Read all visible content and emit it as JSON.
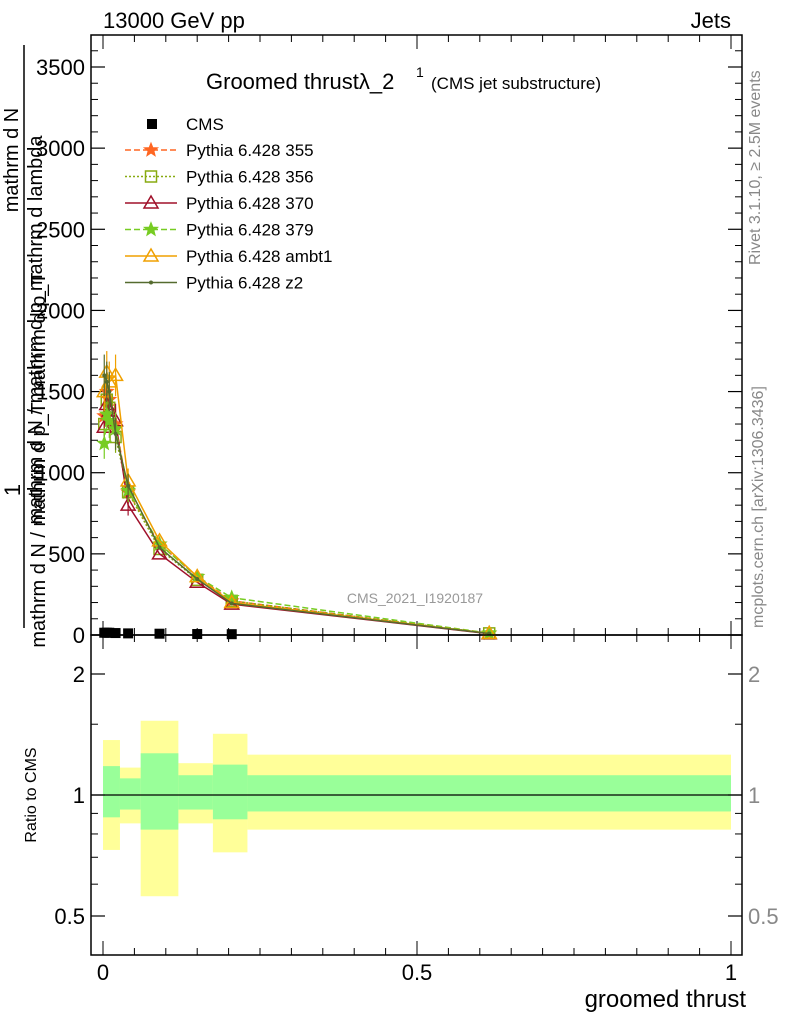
{
  "header": {
    "left": "13000 GeV pp",
    "right": "Jets"
  },
  "side": {
    "rivet": "Rivet 3.1.10, ≥ 2.5M events",
    "mcplots": "mcplots.cern.ch [arXiv:1306.3436]"
  },
  "title": {
    "main": "Groomed thrustλ_2",
    "sup": "1",
    "sub": "(CMS jet substructure)"
  },
  "watermark": "CMS_2021_I1920187",
  "ylabel_top": {
    "one": "1",
    "num": "mathrm d N / mathrm d p_mathrm d lambda",
    "den_a": "mathrm d N / mathrm d p_T mathrm d p_T",
    "den_b": "mathrm d N"
  },
  "ylabel_ratio": "Ratio to CMS",
  "xlabel": "groomed thrust",
  "colors": {
    "data": "#000000",
    "p355": "#ff6622",
    "p356": "#88aa11",
    "p370": "#a0102a",
    "p379": "#77cc22",
    "ambt1": "#f0a000",
    "z2": "#556b2f",
    "band_inner": "#99ff99",
    "band_outer": "#ffff99"
  },
  "chart_data": [
    {
      "type": "line",
      "xlim": [
        -0.02,
        1.02
      ],
      "ylim": [
        0,
        3700
      ],
      "xticks": [
        "0",
        "0.5",
        "1"
      ],
      "yticks": [
        "0",
        "500",
        "1000",
        "1500",
        "2000",
        "2500",
        "3000",
        "3500"
      ],
      "legend_position": "top-left",
      "data": {
        "name": "CMS",
        "x": [
          0.002,
          0.006,
          0.01,
          0.02,
          0.04,
          0.09,
          0.15,
          0.205
        ],
        "y": [
          14,
          14,
          14,
          12,
          10,
          8,
          6,
          5
        ]
      },
      "series": [
        {
          "name": "Pythia 6.428 355",
          "key": "p355",
          "marker": "star",
          "dash": "6,3",
          "x": [
            0.002,
            0.006,
            0.01,
            0.02,
            0.04,
            0.09,
            0.15,
            0.205,
            0.615
          ],
          "y": [
            1350,
            1500,
            1450,
            1300,
            880,
            560,
            360,
            210,
            10
          ]
        },
        {
          "name": "Pythia 6.428 356",
          "key": "p356",
          "marker": "square",
          "dash": "2,2",
          "x": [
            0.002,
            0.006,
            0.01,
            0.02,
            0.04,
            0.09,
            0.15,
            0.205,
            0.615
          ],
          "y": [
            1300,
            1450,
            1400,
            1220,
            880,
            530,
            340,
            210,
            10
          ]
        },
        {
          "name": "Pythia 6.428 370",
          "key": "p370",
          "marker": "triangle-open",
          "dash": "",
          "x": [
            0.002,
            0.006,
            0.01,
            0.02,
            0.04,
            0.09,
            0.15,
            0.205,
            0.615
          ],
          "y": [
            1280,
            1420,
            1380,
            1320,
            800,
            500,
            325,
            190,
            8
          ]
        },
        {
          "name": "Pythia 6.428 379",
          "key": "p379",
          "marker": "star",
          "dash": "6,3",
          "x": [
            0.002,
            0.006,
            0.01,
            0.02,
            0.04,
            0.09,
            0.15,
            0.205,
            0.615
          ],
          "y": [
            1180,
            1360,
            1320,
            1270,
            890,
            560,
            360,
            230,
            12
          ]
        },
        {
          "name": "Pythia 6.428 ambt1",
          "key": "ambt1",
          "marker": "triangle-open",
          "dash": "",
          "x": [
            0.002,
            0.006,
            0.01,
            0.02,
            0.04,
            0.09,
            0.15,
            0.205,
            0.615
          ],
          "y": [
            1500,
            1620,
            1560,
            1600,
            950,
            580,
            360,
            200,
            10
          ]
        },
        {
          "name": "Pythia 6.428 z2",
          "key": "z2",
          "marker": "dot",
          "dash": "",
          "x": [
            0.002,
            0.006,
            0.01,
            0.02,
            0.04,
            0.09,
            0.15,
            0.205,
            0.615
          ],
          "y": [
            1600,
            1560,
            1500,
            1240,
            920,
            540,
            345,
            195,
            9
          ]
        }
      ]
    },
    {
      "type": "area",
      "xlim": [
        -0.02,
        1.02
      ],
      "ylim": [
        0.35,
        2.3
      ],
      "xticks": [
        "0",
        "0.5",
        "1"
      ],
      "yticks": [
        "0.5",
        "1",
        "2"
      ],
      "reference_line": 1,
      "bands": [
        {
          "x0": 0.0,
          "x1": 0.027,
          "inner": [
            0.88,
            1.18
          ],
          "outer": [
            0.73,
            1.37
          ]
        },
        {
          "x0": 0.027,
          "x1": 0.06,
          "inner": [
            0.92,
            1.1
          ],
          "outer": [
            0.85,
            1.17
          ]
        },
        {
          "x0": 0.06,
          "x1": 0.12,
          "inner": [
            0.82,
            1.27
          ],
          "outer": [
            0.56,
            1.53
          ]
        },
        {
          "x0": 0.12,
          "x1": 0.175,
          "inner": [
            0.92,
            1.12
          ],
          "outer": [
            0.85,
            1.2
          ]
        },
        {
          "x0": 0.175,
          "x1": 0.23,
          "inner": [
            0.87,
            1.19
          ],
          "outer": [
            0.72,
            1.42
          ]
        },
        {
          "x0": 0.23,
          "x1": 1.0,
          "inner": [
            0.91,
            1.12
          ],
          "outer": [
            0.82,
            1.26
          ]
        }
      ]
    }
  ]
}
